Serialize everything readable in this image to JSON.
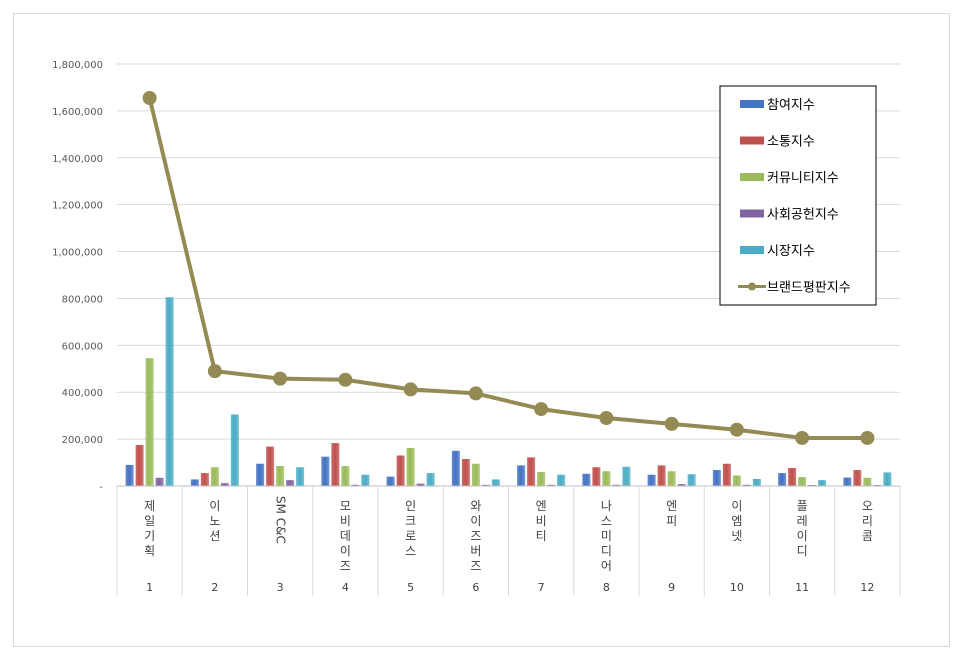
{
  "chart_data": {
    "type": "bar",
    "title": "",
    "xlabel": "",
    "ylabel": "",
    "ylim": [
      0,
      1800000
    ],
    "yticks": [
      0,
      200000,
      400000,
      600000,
      800000,
      1000000,
      1200000,
      1400000,
      1600000,
      1800000
    ],
    "ytick_labels": [
      "-",
      "200,000",
      "400,000",
      "600,000",
      "800,000",
      "1,000,000",
      "1,200,000",
      "1,400,000",
      "1,600,000",
      "1,800,000"
    ],
    "grid": true,
    "legend_position": "top-right",
    "categories": [
      "제일기획",
      "이노션",
      "SM C&C",
      "모비데이즈",
      "인크로스",
      "와이즈버즈",
      "엔비티",
      "나스미디어",
      "엔피",
      "이엠넷",
      "플레이디",
      "오리콤"
    ],
    "ranks": [
      "1",
      "2",
      "3",
      "4",
      "5",
      "6",
      "7",
      "8",
      "9",
      "10",
      "11",
      "12"
    ],
    "series": [
      {
        "name": "참여지수",
        "type": "bar",
        "color": "#4472C4",
        "values": [
          90000,
          28000,
          95000,
          125000,
          40000,
          150000,
          88000,
          52000,
          48000,
          68000,
          55000,
          36000
        ]
      },
      {
        "name": "소통지수",
        "type": "bar",
        "color": "#C0504D",
        "values": [
          175000,
          55000,
          168000,
          183000,
          130000,
          115000,
          122000,
          80000,
          88000,
          95000,
          77000,
          68000
        ]
      },
      {
        "name": "커뮤니티지수",
        "type": "bar",
        "color": "#9BBB59",
        "values": [
          545000,
          80000,
          85000,
          85000,
          162000,
          95000,
          60000,
          63000,
          63000,
          45000,
          38000,
          35000
        ]
      },
      {
        "name": "사회공헌지수",
        "type": "bar",
        "color": "#8064A2",
        "values": [
          35000,
          12000,
          25000,
          5000,
          10000,
          5000,
          5000,
          5000,
          8000,
          5000,
          3000,
          3000
        ]
      },
      {
        "name": "시장지수",
        "type": "bar",
        "color": "#4BACC6",
        "values": [
          805000,
          305000,
          80000,
          48000,
          55000,
          28000,
          48000,
          82000,
          50000,
          30000,
          25000,
          58000
        ]
      },
      {
        "name": "브랜드평판지수",
        "type": "line",
        "color": "#948A54",
        "values": [
          1655000,
          490000,
          458000,
          453000,
          412000,
          395000,
          328000,
          290000,
          265000,
          240000,
          205000,
          205000
        ]
      }
    ]
  }
}
